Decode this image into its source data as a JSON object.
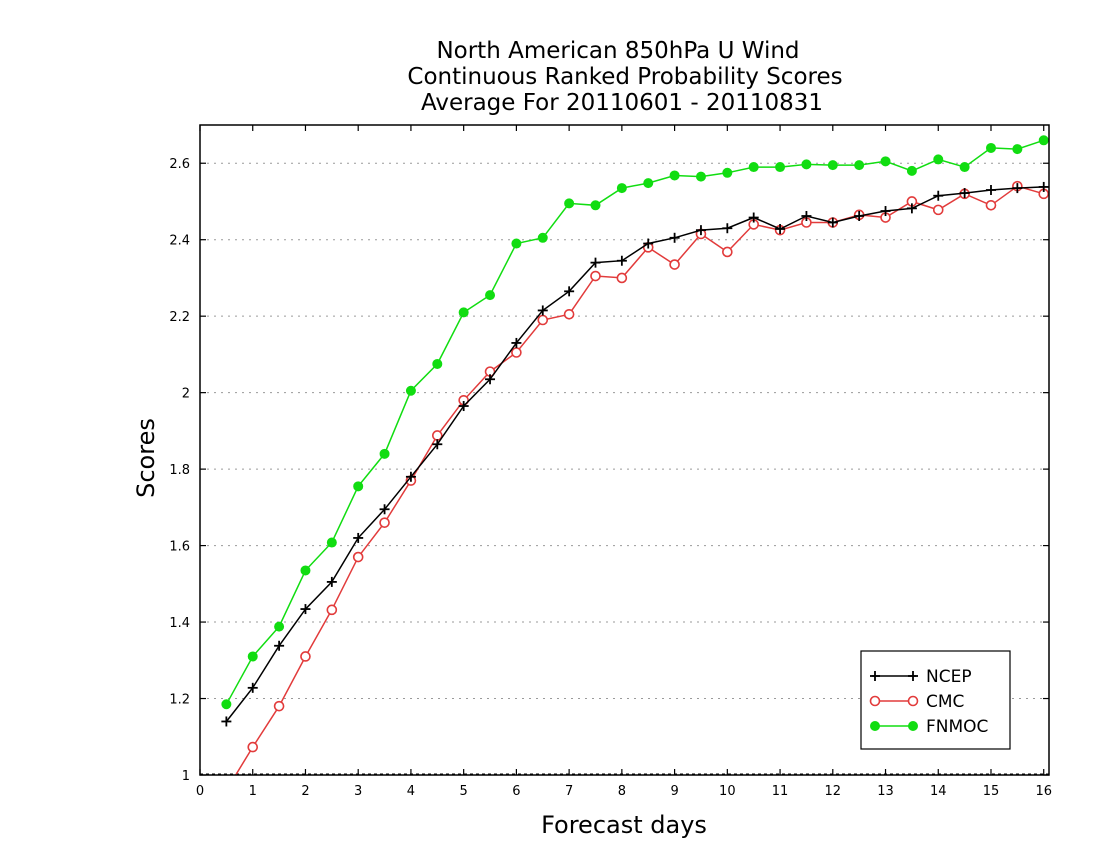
{
  "chart_data": {
    "type": "line",
    "title": [
      "North American 850hPa U Wind",
      "Continuous Ranked Probability Scores",
      "Average For 20110601 - 20110831"
    ],
    "xlabel": "Forecast days",
    "ylabel": "Scores",
    "xlim": [
      0,
      16.1
    ],
    "ylim": [
      1,
      2.7
    ],
    "x_ticks": [
      0,
      1,
      2,
      3,
      4,
      5,
      6,
      7,
      8,
      9,
      10,
      11,
      12,
      13,
      14,
      15,
      16
    ],
    "x_tick_labels": [
      "0",
      "1",
      "2",
      "3",
      "4",
      "5",
      "6",
      "7",
      "8",
      "9",
      "10",
      "11",
      "12",
      "13",
      "14",
      "15",
      "16"
    ],
    "y_ticks": [
      1,
      1.2,
      1.4,
      1.6,
      1.8,
      2,
      2.2,
      2.4,
      2.6
    ],
    "y_tick_labels": [
      "1",
      "1.2",
      "1.4",
      "1.6",
      "1.8",
      "2",
      "2.2",
      "2.4",
      "2.6"
    ],
    "grid": "horizontal dotted",
    "legend_position": "bottom-right",
    "x": [
      0.5,
      1,
      1.5,
      2,
      2.5,
      3,
      3.5,
      4,
      4.5,
      5,
      5.5,
      6,
      6.5,
      7,
      7.5,
      8,
      8.5,
      9,
      9.5,
      10,
      10.5,
      11,
      11.5,
      12,
      12.5,
      13,
      13.5,
      14,
      14.5,
      15,
      15.5,
      16
    ],
    "series": [
      {
        "name": "NCEP",
        "color": "#000000",
        "marker": "plus",
        "values": [
          1.14,
          1.228,
          1.338,
          1.434,
          1.505,
          1.62,
          1.695,
          1.78,
          1.865,
          1.965,
          2.035,
          2.13,
          2.215,
          2.265,
          2.34,
          2.345,
          2.39,
          2.405,
          2.425,
          2.43,
          2.458,
          2.428,
          2.462,
          2.445,
          2.462,
          2.475,
          2.482,
          2.515,
          2.522,
          2.53,
          2.535,
          2.538
        ]
      },
      {
        "name": "CMC",
        "color": "#e23b3b",
        "marker": "open-circle",
        "values": [
          0.96,
          1.073,
          1.18,
          1.31,
          1.432,
          1.57,
          1.66,
          1.77,
          1.888,
          1.98,
          2.055,
          2.105,
          2.19,
          2.205,
          2.305,
          2.3,
          2.38,
          2.335,
          2.415,
          2.368,
          2.44,
          2.425,
          2.445,
          2.445,
          2.465,
          2.458,
          2.5,
          2.478,
          2.52,
          2.49,
          2.54,
          2.52
        ]
      },
      {
        "name": "FNMOC",
        "color": "#11dd11",
        "marker": "filled-circle",
        "values": [
          1.185,
          1.31,
          1.388,
          1.535,
          1.608,
          1.755,
          1.84,
          2.005,
          2.075,
          2.21,
          2.255,
          2.39,
          2.405,
          2.495,
          2.49,
          2.535,
          2.548,
          2.568,
          2.565,
          2.575,
          2.59,
          2.59,
          2.597,
          2.595,
          2.595,
          2.605,
          2.58,
          2.61,
          2.59,
          2.64,
          2.637,
          2.66
        ]
      }
    ]
  }
}
